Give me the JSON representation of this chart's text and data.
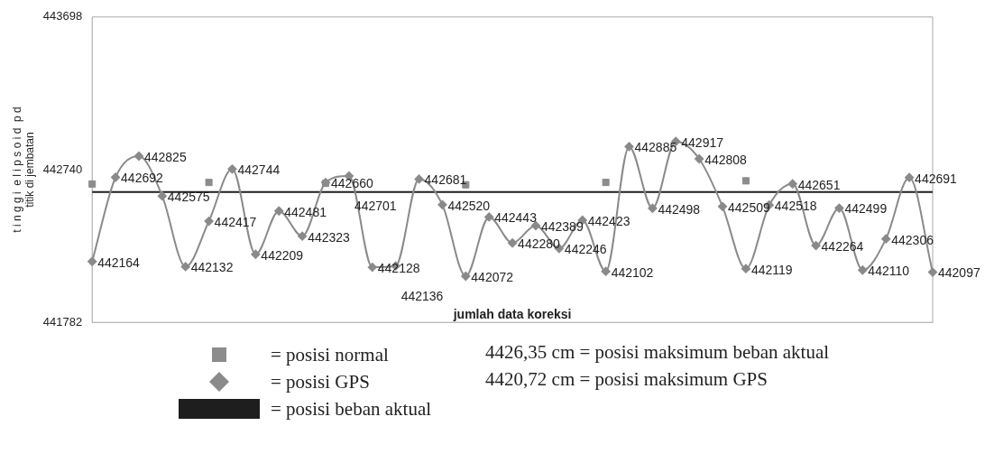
{
  "chart_data": {
    "type": "line",
    "ylabel": "t i n g g i  e l i p s o i d  p d\ntitik di jembatan",
    "xlabel": "jumlah data koreksi",
    "categories": [
      null,
      null,
      null,
      null,
      null,
      null,
      null,
      null,
      null,
      null,
      null,
      null,
      null,
      null,
      null,
      null,
      null,
      null,
      null,
      null,
      null,
      null,
      null,
      null,
      null,
      null,
      null,
      null,
      null,
      null,
      null,
      null,
      null,
      null,
      null,
      null,
      null
    ],
    "ylim": [
      441782,
      443698
    ],
    "yticks": [
      441782,
      442740,
      443698
    ],
    "tick_labels": "y",
    "grid": false,
    "legend": "bottom left",
    "series": [
      {
        "name": "= posisi normal",
        "type": "scatter",
        "marker": "square",
        "color": "#8c8c8c",
        "values": [
          442650,
          null,
          null,
          null,
          null,
          442660,
          null,
          null,
          null,
          null,
          442655,
          null,
          null,
          null,
          null,
          null,
          442645,
          null,
          null,
          null,
          null,
          null,
          442660,
          null,
          null,
          null,
          null,
          null,
          442670,
          null,
          null,
          null,
          null,
          null,
          null,
          null,
          null
        ]
      },
      {
        "name": "= posisi GPS",
        "type": "line",
        "marker": "diamond",
        "color": "#8a8a8a",
        "values": [
          442164,
          442692,
          442825,
          442575,
          442132,
          442417,
          442744,
          442209,
          442481,
          442323,
          442660,
          442701,
          442128,
          442136,
          442681,
          442520,
          442072,
          442443,
          442280,
          442389,
          442246,
          442423,
          442102,
          442885,
          442498,
          442917,
          442808,
          442509,
          442119,
          442518,
          442651,
          442264,
          442499,
          442110,
          442306,
          442691,
          442097
        ],
        "value_labels": [
          "442164",
          "442692",
          "442825",
          "442575",
          "442132",
          "442417",
          "442744",
          "442209",
          "442481",
          "442323",
          "442660",
          "442701",
          "442128",
          "442136",
          "442681",
          "442520",
          "442072",
          "442443",
          "442280",
          "442389",
          "442246",
          "442423",
          "442102",
          "442885",
          "442498",
          "442917",
          "442808",
          "442509",
          "442119",
          "442518",
          "442651",
          "442264",
          "442499",
          "442110",
          "442306",
          "442691",
          "442097"
        ]
      },
      {
        "name": "= posisi beban aktual",
        "type": "line",
        "marker": "none",
        "color": "#1e1e1e",
        "values": [
          442600,
          442600,
          442600,
          442600,
          442600,
          442600,
          442600,
          442600,
          442600,
          442600,
          442600,
          442600,
          442600,
          442600,
          442600,
          442600,
          442600,
          442600,
          442600,
          442600,
          442600,
          442600,
          442600,
          442600,
          442600,
          442600,
          442600,
          442600,
          442600,
          442600,
          442600,
          442600,
          442600,
          442600,
          442600,
          442600,
          442600
        ]
      }
    ],
    "annotations": [
      "4426,35 cm = posisi maksimum beban aktual",
      "4420,72 cm = posisi maksimum GPS"
    ]
  }
}
